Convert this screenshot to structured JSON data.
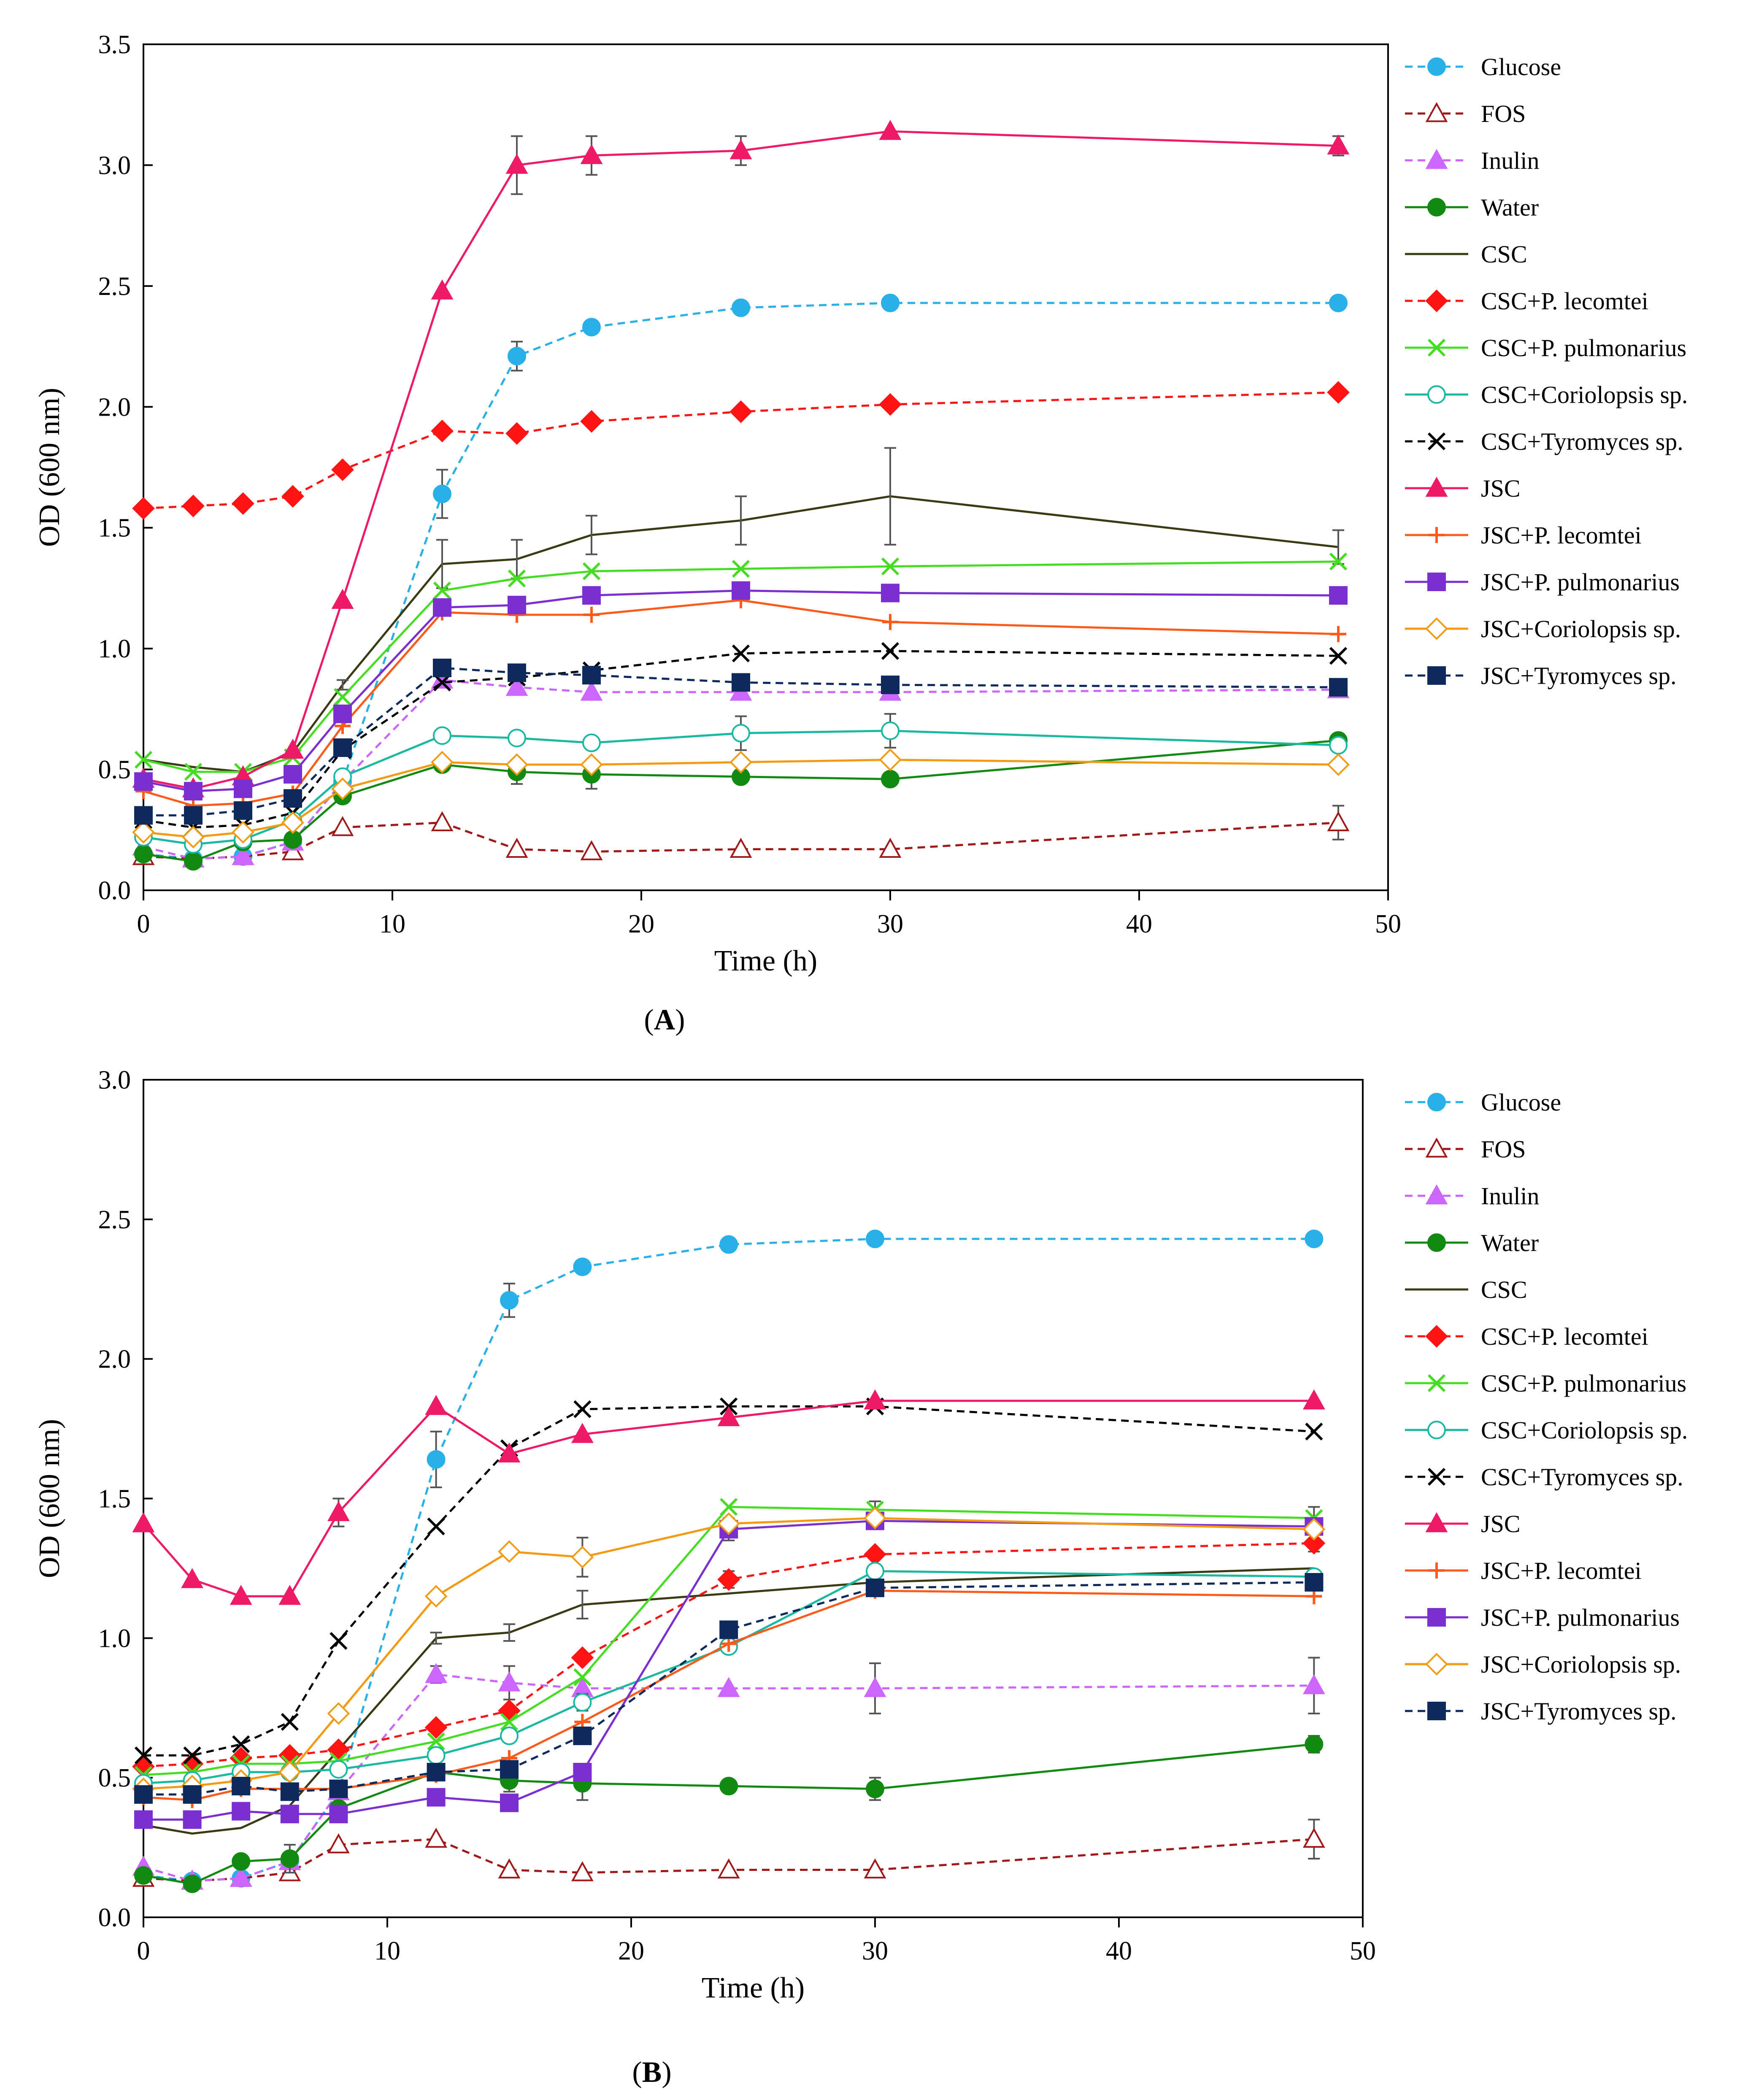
{
  "chart_data": [
    {
      "type": "line",
      "panel_label": "A",
      "xlabel": "Time (h)",
      "ylabel": "OD (600 nm)",
      "xlim": [
        0,
        50
      ],
      "ylim": [
        0,
        3.5
      ],
      "x_ticks": [
        "0",
        "10",
        "20",
        "30",
        "40",
        "50"
      ],
      "y_ticks": [
        "0.0",
        "0.5",
        "1.0",
        "1.5",
        "2.0",
        "2.5",
        "3.0",
        "3.5"
      ],
      "x": [
        0,
        2,
        4,
        6,
        8,
        12,
        15,
        18,
        24,
        30,
        48
      ],
      "series": [
        {
          "name": "Glucose",
          "color": "#2ab0e8",
          "dash": "dashed",
          "marker": "circle",
          "fill": true,
          "values": [
            0.15,
            0.13,
            0.14,
            0.2,
            0.45,
            1.64,
            2.21,
            2.33,
            2.41,
            2.43,
            2.43
          ],
          "errors": [
            0,
            0,
            0,
            0,
            0,
            0.1,
            0.06,
            0,
            0,
            0,
            0
          ]
        },
        {
          "name": "FOS",
          "color": "#a01818",
          "dash": "dashed",
          "marker": "triangle",
          "fill": false,
          "values": [
            0.14,
            0.13,
            0.14,
            0.16,
            0.26,
            0.28,
            0.17,
            0.16,
            0.17,
            0.17,
            0.28
          ],
          "errors": [
            0,
            0,
            0,
            0,
            0,
            0,
            0,
            0,
            0,
            0,
            0.07
          ]
        },
        {
          "name": "Inulin",
          "color": "#cc66ff",
          "dash": "dashed",
          "marker": "triangle",
          "fill": true,
          "values": [
            0.18,
            0.13,
            0.14,
            0.2,
            0.45,
            0.87,
            0.84,
            0.82,
            0.82,
            0.82,
            0.83
          ],
          "errors": [
            0,
            0,
            0,
            0,
            0,
            0,
            0,
            0,
            0,
            0,
            0
          ]
        },
        {
          "name": "Water",
          "color": "#128a12",
          "dash": "solid",
          "marker": "circle",
          "fill": true,
          "values": [
            0.15,
            0.12,
            0.2,
            0.21,
            0.39,
            0.52,
            0.49,
            0.48,
            0.47,
            0.46,
            0.62
          ],
          "errors": [
            0,
            0,
            0,
            0,
            0,
            0,
            0.05,
            0.06,
            0,
            0,
            0
          ]
        },
        {
          "name": "CSC",
          "color": "#3a3a14",
          "dash": "solid",
          "marker": "none",
          "fill": false,
          "values": [
            0.54,
            0.51,
            0.49,
            0.57,
            0.85,
            1.35,
            1.37,
            1.47,
            1.53,
            1.63,
            1.42
          ],
          "errors": [
            0,
            0,
            0,
            0,
            0.02,
            0.1,
            0.08,
            0.08,
            0.1,
            0.2,
            0.07
          ]
        },
        {
          "name": "CSC+P. lecomtei",
          "color": "#ff1414",
          "dash": "dashed",
          "marker": "diamond",
          "fill": true,
          "values": [
            1.58,
            1.59,
            1.6,
            1.63,
            1.74,
            1.9,
            1.89,
            1.94,
            1.98,
            2.01,
            2.06
          ],
          "errors": [
            0,
            0,
            0,
            0,
            0,
            0,
            0,
            0,
            0,
            0,
            0
          ]
        },
        {
          "name": "CSC+P. pulmonarius",
          "color": "#44dd22",
          "dash": "solid",
          "marker": "x",
          "fill": false,
          "values": [
            0.54,
            0.49,
            0.49,
            0.55,
            0.8,
            1.24,
            1.29,
            1.32,
            1.33,
            1.34,
            1.36
          ],
          "errors": [
            0,
            0,
            0,
            0,
            0,
            0,
            0,
            0,
            0,
            0,
            0
          ]
        },
        {
          "name": "CSC+Coriolopsis sp.",
          "color": "#1ab8a0",
          "dash": "solid",
          "marker": "circle",
          "fill": false,
          "values": [
            0.22,
            0.19,
            0.21,
            0.29,
            0.47,
            0.64,
            0.63,
            0.61,
            0.65,
            0.66,
            0.6
          ],
          "errors": [
            0,
            0,
            0,
            0,
            0,
            0,
            0,
            0,
            0.07,
            0.07,
            0
          ]
        },
        {
          "name": "CSC+Tyromyces sp.",
          "color": "#000000",
          "dash": "dashed",
          "marker": "x",
          "fill": false,
          "values": [
            0.29,
            0.26,
            0.27,
            0.32,
            0.58,
            0.86,
            0.88,
            0.91,
            0.98,
            0.99,
            0.97
          ],
          "errors": [
            0,
            0,
            0,
            0,
            0,
            0,
            0,
            0,
            0,
            0,
            0
          ]
        },
        {
          "name": "JSC",
          "color": "#ee1a66",
          "dash": "solid",
          "marker": "triangle",
          "fill": true,
          "values": [
            0.46,
            0.42,
            0.47,
            0.58,
            1.2,
            2.48,
            3.0,
            3.04,
            3.06,
            3.14,
            3.08
          ],
          "errors": [
            0,
            0,
            0,
            0,
            0,
            0,
            0.12,
            0.08,
            0.06,
            0,
            0.04
          ]
        },
        {
          "name": "JSC+P. lecomtei",
          "color": "#ff5a1a",
          "dash": "solid",
          "marker": "plus",
          "fill": false,
          "values": [
            0.41,
            0.35,
            0.36,
            0.4,
            0.68,
            1.15,
            1.14,
            1.14,
            1.2,
            1.11,
            1.06
          ],
          "errors": [
            0,
            0,
            0,
            0,
            0,
            0,
            0,
            0,
            0,
            0,
            0
          ]
        },
        {
          "name": "JSC+P. pulmonarius",
          "color": "#7b2fd0",
          "dash": "solid",
          "marker": "square",
          "fill": true,
          "values": [
            0.45,
            0.41,
            0.42,
            0.48,
            0.73,
            1.17,
            1.18,
            1.22,
            1.24,
            1.23,
            1.22
          ],
          "errors": [
            0,
            0,
            0,
            0,
            0,
            0,
            0,
            0,
            0,
            0,
            0
          ]
        },
        {
          "name": "JSC+Coriolopsis sp.",
          "color": "#f39a10",
          "dash": "solid",
          "marker": "diamond",
          "fill": false,
          "values": [
            0.24,
            0.22,
            0.24,
            0.28,
            0.42,
            0.53,
            0.52,
            0.52,
            0.53,
            0.54,
            0.52
          ],
          "errors": [
            0,
            0,
            0,
            0,
            0,
            0,
            0,
            0,
            0,
            0,
            0
          ]
        },
        {
          "name": "JSC+Tyromyces sp.",
          "color": "#0e2a5c",
          "dash": "dashed",
          "marker": "square",
          "fill": true,
          "values": [
            0.31,
            0.31,
            0.33,
            0.38,
            0.59,
            0.92,
            0.9,
            0.89,
            0.86,
            0.85,
            0.84
          ],
          "errors": [
            0,
            0,
            0,
            0,
            0,
            0,
            0,
            0,
            0,
            0,
            0
          ]
        }
      ]
    },
    {
      "type": "line",
      "panel_label": "B",
      "xlabel": "Time (h)",
      "ylabel": "OD (600 nm)",
      "xlim": [
        0,
        50
      ],
      "ylim": [
        0,
        3.0
      ],
      "x_ticks": [
        "0",
        "10",
        "20",
        "30",
        "40",
        "50"
      ],
      "y_ticks": [
        "0.0",
        "0.5",
        "1.0",
        "1.5",
        "2.0",
        "2.5",
        "3.0"
      ],
      "x": [
        0,
        2,
        4,
        6,
        8,
        12,
        15,
        18,
        24,
        30,
        48
      ],
      "series": [
        {
          "name": "Glucose",
          "color": "#2ab0e8",
          "dash": "dashed",
          "marker": "circle",
          "fill": true,
          "values": [
            0.15,
            0.13,
            0.14,
            0.2,
            0.45,
            1.64,
            2.21,
            2.33,
            2.41,
            2.43,
            2.43
          ],
          "errors": [
            0,
            0,
            0,
            0,
            0,
            0.1,
            0.06,
            0,
            0,
            0,
            0
          ]
        },
        {
          "name": "FOS",
          "color": "#a01818",
          "dash": "dashed",
          "marker": "triangle",
          "fill": false,
          "values": [
            0.14,
            0.13,
            0.14,
            0.16,
            0.26,
            0.28,
            0.17,
            0.16,
            0.17,
            0.17,
            0.28
          ],
          "errors": [
            0,
            0,
            0,
            0,
            0,
            0,
            0,
            0,
            0,
            0,
            0.07
          ]
        },
        {
          "name": "Inulin",
          "color": "#cc66ff",
          "dash": "dashed",
          "marker": "triangle",
          "fill": true,
          "values": [
            0.18,
            0.13,
            0.14,
            0.2,
            0.45,
            0.87,
            0.84,
            0.82,
            0.82,
            0.82,
            0.83
          ],
          "errors": [
            0,
            0,
            0,
            0,
            0,
            0.03,
            0.06,
            0,
            0,
            0.09,
            0.1
          ]
        },
        {
          "name": "Water",
          "color": "#128a12",
          "dash": "solid",
          "marker": "circle",
          "fill": true,
          "values": [
            0.15,
            0.12,
            0.2,
            0.21,
            0.39,
            0.52,
            0.49,
            0.48,
            0.47,
            0.46,
            0.62
          ],
          "errors": [
            0,
            0,
            0,
            0.05,
            0,
            0,
            0.04,
            0.06,
            0,
            0.04,
            0.03
          ]
        },
        {
          "name": "CSC",
          "color": "#3a3a14",
          "dash": "solid",
          "marker": "none",
          "fill": false,
          "values": [
            0.33,
            0.3,
            0.32,
            0.4,
            0.6,
            1.0,
            1.02,
            1.12,
            1.16,
            1.2,
            1.25
          ],
          "errors": [
            0,
            0,
            0,
            0,
            0,
            0.02,
            0.03,
            0.05,
            0,
            0,
            0
          ]
        },
        {
          "name": "CSC+P. lecomtei",
          "color": "#ff1414",
          "dash": "dashed",
          "marker": "diamond",
          "fill": true,
          "values": [
            0.54,
            0.55,
            0.57,
            0.58,
            0.6,
            0.68,
            0.74,
            0.93,
            1.21,
            1.3,
            1.34
          ],
          "errors": [
            0,
            0,
            0,
            0,
            0,
            0,
            0,
            0,
            0.03,
            0,
            0.03
          ]
        },
        {
          "name": "CSC+P. pulmonarius",
          "color": "#44dd22",
          "dash": "solid",
          "marker": "x",
          "fill": false,
          "values": [
            0.51,
            0.52,
            0.55,
            0.55,
            0.56,
            0.63,
            0.7,
            0.86,
            1.47,
            1.46,
            1.43
          ],
          "errors": [
            0,
            0,
            0,
            0,
            0,
            0,
            0,
            0,
            0,
            0.03,
            0.04
          ]
        },
        {
          "name": "CSC+Coriolopsis sp.",
          "color": "#1ab8a0",
          "dash": "solid",
          "marker": "circle",
          "fill": false,
          "values": [
            0.48,
            0.49,
            0.52,
            0.52,
            0.53,
            0.58,
            0.65,
            0.77,
            0.97,
            1.24,
            1.22
          ],
          "errors": [
            0,
            0,
            0,
            0,
            0,
            0,
            0,
            0.03,
            0,
            0,
            0
          ]
        },
        {
          "name": "CSC+Tyromyces sp.",
          "color": "#000000",
          "dash": "dashed",
          "marker": "x",
          "fill": false,
          "values": [
            0.58,
            0.58,
            0.62,
            0.7,
            0.99,
            1.4,
            1.68,
            1.82,
            1.83,
            1.83,
            1.74
          ],
          "errors": [
            0,
            0,
            0,
            0,
            0,
            0,
            0,
            0,
            0,
            0,
            0
          ]
        },
        {
          "name": "JSC",
          "color": "#ee1a66",
          "dash": "solid",
          "marker": "triangle",
          "fill": true,
          "values": [
            1.41,
            1.21,
            1.15,
            1.15,
            1.45,
            1.83,
            1.66,
            1.73,
            1.79,
            1.85,
            1.85
          ],
          "errors": [
            0,
            0,
            0,
            0,
            0.05,
            0,
            0,
            0,
            0,
            0,
            0
          ]
        },
        {
          "name": "JSC+P. lecomtei",
          "color": "#ff5a1a",
          "dash": "solid",
          "marker": "plus",
          "fill": false,
          "values": [
            0.43,
            0.42,
            0.46,
            0.46,
            0.46,
            0.51,
            0.57,
            0.7,
            0.98,
            1.17,
            1.15
          ],
          "errors": [
            0,
            0,
            0,
            0,
            0,
            0,
            0,
            0,
            0,
            0,
            0
          ]
        },
        {
          "name": "JSC+P. pulmonarius",
          "color": "#7b2fd0",
          "dash": "solid",
          "marker": "square",
          "fill": true,
          "values": [
            0.35,
            0.35,
            0.38,
            0.37,
            0.37,
            0.43,
            0.41,
            0.52,
            1.39,
            1.42,
            1.4
          ],
          "errors": [
            0,
            0,
            0,
            0,
            0,
            0,
            0,
            0,
            0.04,
            0,
            0
          ]
        },
        {
          "name": "JSC+Coriolopsis sp.",
          "color": "#f39a10",
          "dash": "solid",
          "marker": "diamond",
          "fill": false,
          "values": [
            0.46,
            0.47,
            0.49,
            0.52,
            0.73,
            1.15,
            1.31,
            1.29,
            1.41,
            1.43,
            1.39
          ],
          "errors": [
            0,
            0,
            0,
            0,
            0,
            0,
            0,
            0.07,
            0,
            0,
            0
          ]
        },
        {
          "name": "JSC+Tyromyces sp.",
          "color": "#0e2a5c",
          "dash": "dashed",
          "marker": "square",
          "fill": true,
          "values": [
            0.44,
            0.44,
            0.47,
            0.45,
            0.46,
            0.52,
            0.53,
            0.65,
            1.03,
            1.18,
            1.2
          ],
          "errors": [
            0,
            0,
            0,
            0,
            0,
            0,
            0,
            0,
            0,
            0,
            0
          ]
        }
      ]
    }
  ]
}
